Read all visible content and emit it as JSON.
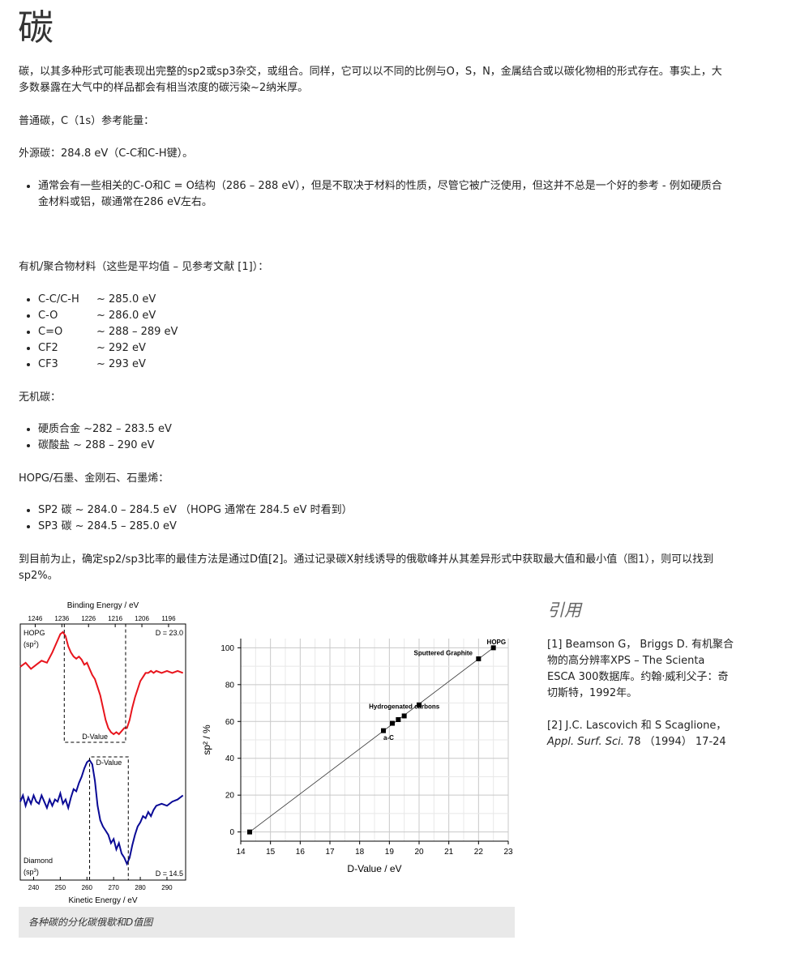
{
  "page": {
    "title": "碳",
    "intro": "碳，以其多种形式可能表现出完整的sp2或sp3杂交，或组合。同样，它可以以不同的比例与O，S，N，金属结合或以碳化物相的形式存在。事实上，大多数暴露在大气中的样品都会有相当浓度的碳污染~2纳米厚。",
    "ref_energy_heading": "普通碳，C（1s）参考能量：",
    "adventitious": "外源碳：284.8 eV（C-C和C-H键）。",
    "adventitious_note": "通常会有一些相关的C-O和C = O结构（286 – 288 eV），但是不取决于材料的性质，尽管它被广泛使用，但这并不总是一个好的参考 - 例如硬质合金材料或铝，碳通常在286 eV左右。",
    "organic_heading": "有机/聚合物材料（这些是平均值 – 见参考文献 [1]）：",
    "organic_items": [
      {
        "name": "C-C/C-H",
        "value": "~  285.0 eV"
      },
      {
        "name": "C-O",
        "value": "~  286.0 eV"
      },
      {
        "name": "C=O",
        "value": "~ 288 – 289 eV"
      },
      {
        "name": "CF2",
        "value": "~ 292 eV"
      },
      {
        "name": "CF3",
        "value": "~ 293 eV"
      }
    ],
    "inorganic_heading": "无机碳：",
    "inorganic_items": [
      "硬质合金 ~282 – 283.5 eV",
      "碳酸盐 ~ 288 – 290 eV"
    ],
    "hopg_heading": "HOPG/石墨、金刚石、石墨烯：",
    "hopg_items": [
      "SP2 碳 ~ 284.0 – 284.5 eV （HOPG 通常在 284.5 eV 时看到）",
      "SP3 碳 ~ 284.5 – 285.0 eV"
    ],
    "dvalue_text": "到目前为止，确定sp2/sp3比率的最佳方法是通过D值[2]。通过记录碳X射线诱导的俄歇峰并从其差异形式中获取最大值和最小值（图1），则可以找到sp2%。",
    "caption": "各种碳的分化碳俄歇和D值图"
  },
  "references": {
    "title": "引用",
    "ref1": "[1] Beamson G， Briggs D. 有机聚合物的高分辨率XPS – The Scienta ESCA 300数据库。约翰·威利父子：奇切斯特，1992年。",
    "ref2_prefix": "[2] J.C. Lascovich 和 S Scaglione，",
    "ref2_journal": "Appl. Surf. Sci.",
    "ref2_suffix": " 78 （1994） 17-24"
  },
  "chart_data": [
    {
      "type": "line",
      "title": "",
      "top_axis_label": "Binding Energy / eV",
      "top_ticks": [
        "1246",
        "1236",
        "1226",
        "1216",
        "1206",
        "1196"
      ],
      "xlabel": "Kinetic Energy / eV",
      "x_ticks": [
        "240",
        "250",
        "260",
        "270",
        "280",
        "290"
      ],
      "xlim": [
        235,
        297
      ],
      "series": [
        {
          "name": "HOPG (sp2)",
          "color": "#e8141c",
          "d_label": "D = 23.0",
          "dvalue_label": "D-Value",
          "dvalue_range": [
            251.5,
            274.5
          ],
          "x": [
            235,
            237,
            239,
            241,
            243,
            245,
            247,
            248,
            249,
            250,
            251,
            252,
            253,
            254,
            255,
            256,
            257,
            258,
            259,
            260,
            261,
            262,
            263,
            264,
            265,
            266,
            267,
            268,
            269,
            270,
            271,
            272,
            273,
            274,
            275,
            276,
            277,
            278,
            279,
            280,
            281,
            282,
            283,
            284,
            285,
            286,
            288,
            290,
            292,
            294,
            296
          ],
          "y": [
            0.66,
            0.7,
            0.64,
            0.68,
            0.72,
            0.7,
            0.8,
            0.86,
            0.92,
            0.98,
            1.0,
            0.96,
            0.86,
            0.8,
            0.76,
            0.74,
            0.76,
            0.73,
            0.68,
            0.7,
            0.64,
            0.58,
            0.54,
            0.46,
            0.38,
            0.26,
            0.14,
            0.06,
            0.02,
            0.0,
            0.02,
            0.0,
            0.03,
            0.06,
            0.06,
            0.14,
            0.26,
            0.36,
            0.44,
            0.52,
            0.56,
            0.6,
            0.6,
            0.62,
            0.6,
            0.62,
            0.6,
            0.62,
            0.6,
            0.62,
            0.6
          ]
        },
        {
          "name": "Diamond (sp3)",
          "color": "#0a0a96",
          "d_label": "D = 14.5",
          "dvalue_label": "D-Value",
          "dvalue_range": [
            261.0,
            275.5
          ],
          "x": [
            235,
            236,
            237,
            238,
            239,
            240,
            241,
            242,
            243,
            244,
            245,
            246,
            247,
            248,
            249,
            250,
            251,
            252,
            253,
            254,
            255,
            256,
            257,
            258,
            259,
            260,
            261,
            262,
            263,
            264,
            265,
            266,
            267,
            268,
            269,
            270,
            271,
            272,
            273,
            274,
            275,
            276,
            277,
            278,
            279,
            280,
            281,
            282,
            283,
            284,
            285,
            286,
            288,
            290,
            292,
            294,
            296
          ],
          "y": [
            0.6,
            0.66,
            0.56,
            0.64,
            0.58,
            0.66,
            0.6,
            0.58,
            0.66,
            0.6,
            0.54,
            0.62,
            0.56,
            0.62,
            0.6,
            0.68,
            0.58,
            0.62,
            0.54,
            0.64,
            0.72,
            0.7,
            0.78,
            0.84,
            0.92,
            0.98,
            1.0,
            0.96,
            0.8,
            0.56,
            0.42,
            0.36,
            0.32,
            0.28,
            0.2,
            0.24,
            0.14,
            0.2,
            0.1,
            0.06,
            0.0,
            0.06,
            0.18,
            0.28,
            0.36,
            0.4,
            0.46,
            0.44,
            0.5,
            0.46,
            0.52,
            0.56,
            0.58,
            0.56,
            0.6,
            0.62,
            0.66
          ]
        }
      ]
    },
    {
      "type": "scatter",
      "title": "",
      "xlabel": "D-Value / eV",
      "ylabel": "sp² / %",
      "xlim": [
        14,
        23
      ],
      "ylim": [
        -5,
        105
      ],
      "x_ticks": [
        14,
        15,
        16,
        17,
        18,
        19,
        20,
        21,
        22,
        23
      ],
      "y_ticks": [
        0,
        20,
        40,
        60,
        80,
        100
      ],
      "grid": true,
      "points": [
        {
          "x": 14.3,
          "y": 0
        },
        {
          "x": 18.8,
          "y": 55
        },
        {
          "x": 19.1,
          "y": 59
        },
        {
          "x": 19.3,
          "y": 61
        },
        {
          "x": 19.5,
          "y": 63
        },
        {
          "x": 20.0,
          "y": 69
        },
        {
          "x": 22.0,
          "y": 94
        },
        {
          "x": 22.5,
          "y": 100
        }
      ],
      "fit_line": [
        {
          "x": 14.3,
          "y": 0
        },
        {
          "x": 22.5,
          "y": 100
        }
      ],
      "annotations": [
        {
          "text": "HOPG",
          "x": 22.6,
          "y": 102
        },
        {
          "text": "Sputtered Graphite",
          "x": 21.8,
          "y": 96
        },
        {
          "text": "Hydrogenated carbons",
          "x": 19.5,
          "y": 67
        },
        {
          "text": "a-C",
          "x": 18.8,
          "y": 50
        }
      ]
    }
  ]
}
